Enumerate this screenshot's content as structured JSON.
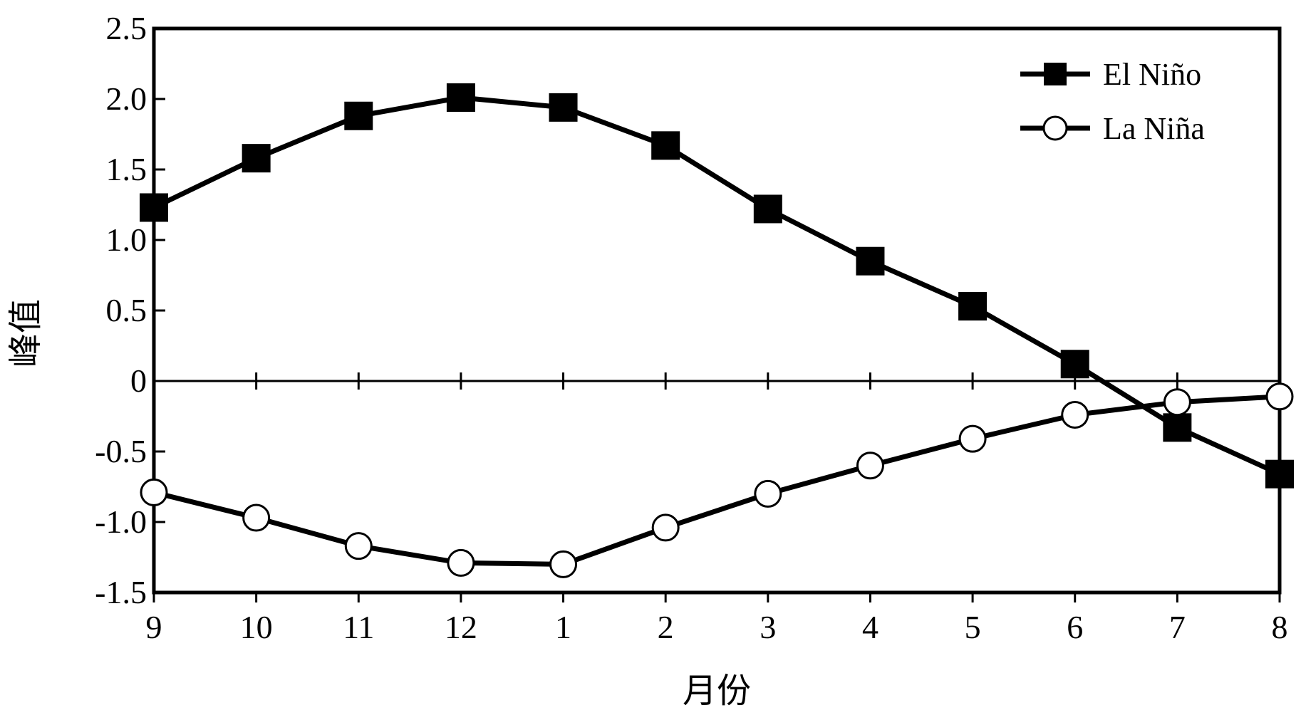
{
  "chart_data": {
    "type": "line",
    "xlabel": "月份",
    "ylabel": "峰值",
    "categories": [
      "9",
      "10",
      "11",
      "12",
      "1",
      "2",
      "3",
      "4",
      "5",
      "6",
      "7",
      "8"
    ],
    "ylim": [
      -1.5,
      2.5
    ],
    "yticks": [
      "2.5",
      "2.0",
      "1.5",
      "1.0",
      "0.5",
      "0",
      "-0.5",
      "-1.0",
      "-1.5"
    ],
    "ytick_values": [
      2.5,
      2.0,
      1.5,
      1.0,
      0.5,
      0,
      -0.5,
      -1.0,
      -1.5
    ],
    "grid": false,
    "zero_line": true,
    "legend_position": "top-right",
    "series": [
      {
        "name": "El Niño",
        "marker": "filled-square",
        "values": [
          1.23,
          1.58,
          1.88,
          2.01,
          1.94,
          1.67,
          1.22,
          0.85,
          0.53,
          0.12,
          -0.33,
          -0.66
        ]
      },
      {
        "name": "La Niña",
        "marker": "open-circle",
        "values": [
          -0.79,
          -0.97,
          -1.17,
          -1.29,
          -1.3,
          -1.04,
          -0.8,
          -0.6,
          -0.41,
          -0.24,
          -0.15,
          -0.11
        ]
      }
    ]
  }
}
